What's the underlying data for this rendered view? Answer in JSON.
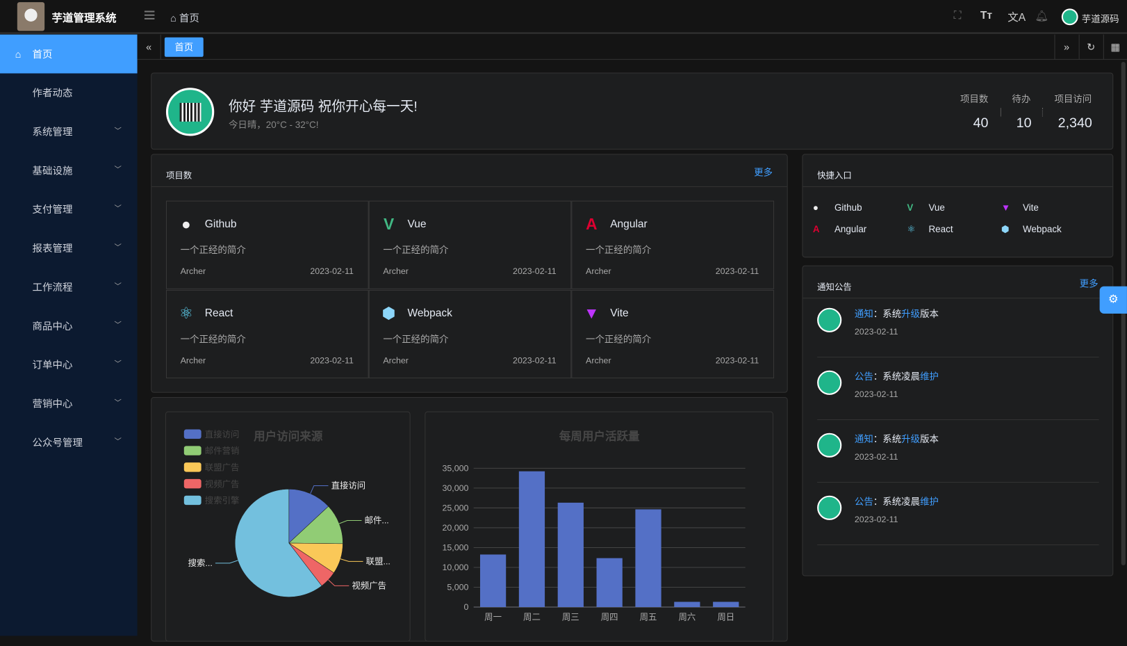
{
  "header": {
    "app_title": "芋道管理系统",
    "breadcrumb": "首页",
    "username": "芋道源码"
  },
  "sidebar": {
    "items": [
      {
        "label": "首页",
        "active": true
      },
      {
        "label": "作者动态"
      },
      {
        "label": "系统管理",
        "expandable": true
      },
      {
        "label": "基础设施",
        "expandable": true
      },
      {
        "label": "支付管理",
        "expandable": true
      },
      {
        "label": "报表管理",
        "expandable": true
      },
      {
        "label": "工作流程",
        "expandable": true
      },
      {
        "label": "商品中心",
        "expandable": true
      },
      {
        "label": "订单中心",
        "expandable": true
      },
      {
        "label": "营销中心",
        "expandable": true
      },
      {
        "label": "公众号管理",
        "expandable": true
      }
    ]
  },
  "tabs": [
    {
      "label": "首页",
      "active": true
    }
  ],
  "welcome": {
    "greeting": "你好 芋道源码 祝你开心每一天!",
    "weather": "今日晴，20°C - 32°C!",
    "stats": [
      {
        "label": "项目数",
        "value": "40"
      },
      {
        "label": "待办",
        "value": "10"
      },
      {
        "label": "项目访问",
        "value": "2,340"
      }
    ]
  },
  "projects": {
    "title": "项目数",
    "more": "更多",
    "items": [
      {
        "name": "Github",
        "icon": "github-icon",
        "desc": "一个正经的简介",
        "author": "Archer",
        "date": "2023-02-11"
      },
      {
        "name": "Vue",
        "icon": "vue-icon",
        "desc": "一个正经的简介",
        "author": "Archer",
        "date": "2023-02-11"
      },
      {
        "name": "Angular",
        "icon": "angular-icon",
        "desc": "一个正经的简介",
        "author": "Archer",
        "date": "2023-02-11"
      },
      {
        "name": "React",
        "icon": "react-icon",
        "desc": "一个正经的简介",
        "author": "Archer",
        "date": "2023-02-11"
      },
      {
        "name": "Webpack",
        "icon": "webpack-icon",
        "desc": "一个正经的简介",
        "author": "Archer",
        "date": "2023-02-11"
      },
      {
        "name": "Vite",
        "icon": "vite-icon",
        "desc": "一个正经的简介",
        "author": "Archer",
        "date": "2023-02-11"
      }
    ]
  },
  "shortcuts": {
    "title": "快捷入口",
    "items": [
      {
        "label": "Github"
      },
      {
        "label": "Vue"
      },
      {
        "label": "Vite"
      },
      {
        "label": "Angular"
      },
      {
        "label": "React"
      },
      {
        "label": "Webpack"
      }
    ]
  },
  "notices": {
    "title": "通知公告",
    "more": "更多",
    "items": [
      {
        "type": "通知",
        "pre": "：系统",
        "hl": "升级",
        "post": "版本",
        "date": "2023-02-11"
      },
      {
        "type": "公告",
        "pre": "：系统凌晨",
        "hl": "维护",
        "post": "",
        "date": "2023-02-11"
      },
      {
        "type": "通知",
        "pre": "：系统",
        "hl": "升级",
        "post": "版本",
        "date": "2023-02-11"
      },
      {
        "type": "公告",
        "pre": "：系统凌晨",
        "hl": "维护",
        "post": "",
        "date": "2023-02-11"
      }
    ]
  },
  "chart_data": [
    {
      "type": "pie",
      "title": "用户访问来源",
      "legend_position": "top-left",
      "slices": [
        {
          "name": "直接访问",
          "value": 335,
          "label": "直接访问",
          "color": "#5470c6"
        },
        {
          "name": "邮件营销",
          "value": 310,
          "label": "邮件...",
          "color": "#91cc75"
        },
        {
          "name": "联盟广告",
          "value": 234,
          "label": "联盟...",
          "color": "#fac858"
        },
        {
          "name": "视频广告",
          "value": 135,
          "label": "视频广告",
          "color": "#ee6666"
        },
        {
          "name": "搜索引擎",
          "value": 1548,
          "label": "搜索...",
          "color": "#73c0de"
        }
      ]
    },
    {
      "type": "bar",
      "title": "每周用户活跃量",
      "categories": [
        "周一",
        "周二",
        "周三",
        "周四",
        "周五",
        "周六",
        "周日"
      ],
      "values": [
        13253,
        34235,
        26321,
        12340,
        24643,
        1322,
        1324
      ],
      "ylim": [
        0,
        35000
      ],
      "yticks": [
        "0",
        "5,000",
        "10,000",
        "15,000",
        "20,000",
        "25,000",
        "30,000",
        "35,000"
      ],
      "grid": true,
      "color": "#5470c6"
    }
  ]
}
